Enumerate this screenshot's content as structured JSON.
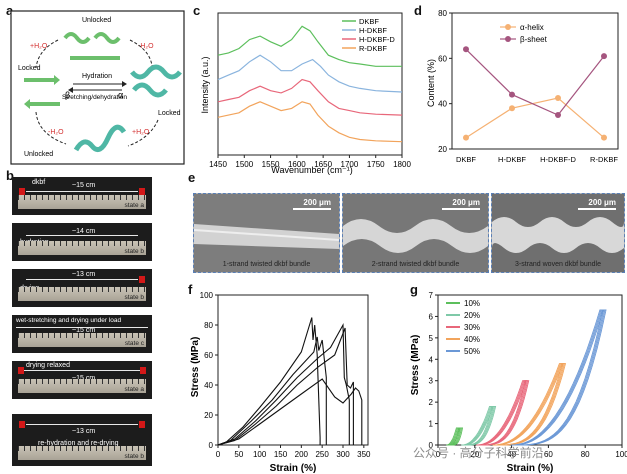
{
  "panels": [
    "a",
    "b",
    "c",
    "d",
    "e",
    "f",
    "g"
  ],
  "a": {
    "labels": {
      "unlocked_top": "Unlocked",
      "unlocked_bottom": "Unlocked",
      "locked_left": "Locked",
      "locked_right": "Locked",
      "h2o_left": "+H₂O",
      "h2o_right": "-H₂O",
      "h2o_bl": "-H₂O",
      "h2o_br": "+H₂O",
      "hydration": "Hydration",
      "stretching": "Stretching/dehydration",
      "beta": "β",
      "alpha": "α"
    }
  },
  "b": {
    "photos": [
      {
        "title": "dkbf",
        "length": "~15 cm",
        "state": "state a"
      },
      {
        "title": "hydration",
        "length": "~14 cm",
        "state": "state b"
      },
      {
        "title": "drying",
        "length": "~13 cm",
        "state": "state b"
      },
      {
        "title": "wet-stretching and drying under load",
        "length": "~15 cm",
        "state": "state c"
      },
      {
        "title": "drying relaxed",
        "length": "~15 cm",
        "state": "state a"
      },
      {
        "title": "re-hydration and re-drying",
        "length": "~13 cm",
        "state": "state b"
      }
    ]
  },
  "c": {
    "chart_data": {
      "type": "line",
      "xlabel": "Wavenumber (cm⁻¹)",
      "ylabel": "Intensity (a.u.)",
      "xlim": [
        1450,
        1800
      ],
      "xticks": [
        "1450",
        "1500",
        "1550",
        "1600",
        "1650",
        "1700",
        "1750",
        "1800"
      ],
      "legend_position": "top-right",
      "series": [
        {
          "name": "DKBF",
          "color": "#5cbf5c",
          "x": [
            1450,
            1470,
            1490,
            1510,
            1530,
            1550,
            1570,
            1590,
            1610,
            1625,
            1640,
            1660,
            1680,
            1700,
            1720,
            1750,
            1800
          ],
          "y": [
            2.95,
            3.0,
            3.1,
            3.3,
            3.38,
            3.25,
            3.15,
            3.3,
            3.6,
            3.5,
            3.25,
            2.95,
            2.85,
            2.78,
            2.75,
            2.7,
            2.7
          ]
        },
        {
          "name": "H-DKBF",
          "color": "#8ab4de",
          "x": [
            1450,
            1470,
            1490,
            1510,
            1530,
            1550,
            1570,
            1590,
            1610,
            1630,
            1645,
            1660,
            1680,
            1700,
            1720,
            1750,
            1800
          ],
          "y": [
            2.4,
            2.5,
            2.6,
            2.8,
            2.95,
            2.8,
            2.6,
            2.6,
            2.75,
            2.85,
            2.7,
            2.5,
            2.35,
            2.25,
            2.2,
            2.15,
            2.12
          ]
        },
        {
          "name": "H-DKBF-D",
          "color": "#e8677a",
          "x": [
            1450,
            1470,
            1490,
            1510,
            1530,
            1550,
            1570,
            1590,
            1610,
            1625,
            1640,
            1660,
            1680,
            1700,
            1720,
            1750,
            1800
          ],
          "y": [
            1.9,
            1.95,
            2.0,
            2.15,
            2.25,
            2.15,
            2.1,
            2.2,
            2.4,
            2.35,
            2.15,
            1.9,
            1.75,
            1.7,
            1.65,
            1.62,
            1.6
          ]
        },
        {
          "name": "R-DKBF",
          "color": "#f2a45c",
          "x": [
            1450,
            1470,
            1490,
            1510,
            1530,
            1550,
            1570,
            1590,
            1610,
            1625,
            1640,
            1660,
            1680,
            1700,
            1720,
            1750,
            1800
          ],
          "y": [
            1.55,
            1.6,
            1.65,
            1.8,
            1.9,
            1.8,
            1.7,
            1.75,
            1.9,
            1.85,
            1.6,
            1.35,
            1.2,
            1.1,
            1.05,
            1.02,
            1.0
          ]
        }
      ]
    }
  },
  "d": {
    "chart_data": {
      "type": "line",
      "categories": [
        "DKBF",
        "H-DKBF",
        "H-DKBF-D",
        "R-DKBF"
      ],
      "ylabel": "Content (%)",
      "ylim": [
        20,
        80
      ],
      "yticks": [
        "20",
        "40",
        "60",
        "80"
      ],
      "legend_position": "top-center",
      "series": [
        {
          "name": "α-helix",
          "color": "#f5b173",
          "values": [
            25,
            38,
            42.5,
            25
          ]
        },
        {
          "name": "β-sheet",
          "color": "#a5557f",
          "values": [
            64,
            44,
            35,
            61
          ]
        }
      ]
    }
  },
  "e": {
    "images": [
      {
        "caption": "1-strand twisted dkbf bundle",
        "scale": "200 μm"
      },
      {
        "caption": "2-strand twisted dkbf bundle",
        "scale": "200 μm"
      },
      {
        "caption": "3-strand woven dkbf bundle",
        "scale": "200 μm"
      }
    ]
  },
  "f": {
    "chart_data": {
      "type": "line",
      "xlabel": "Strain (%)",
      "ylabel": "Stress (MPa)",
      "xlim": [
        0,
        360
      ],
      "ylim": [
        0,
        100
      ],
      "xticks": [
        "0",
        "50",
        "100",
        "150",
        "200",
        "250",
        "300",
        "350"
      ],
      "yticks": [
        "0",
        "20",
        "40",
        "60",
        "80",
        "100"
      ],
      "series": [
        {
          "x": [
            0,
            20,
            60,
            100,
            150,
            200,
            225,
            228,
            232,
            238,
            245,
            245
          ],
          "y": [
            0,
            2,
            12,
            25,
            42,
            62,
            85,
            70,
            80,
            60,
            5,
            0
          ]
        },
        {
          "x": [
            0,
            30,
            80,
            130,
            180,
            230,
            238,
            242,
            250,
            260,
            260
          ],
          "y": [
            0,
            3,
            16,
            30,
            47,
            62,
            72,
            63,
            70,
            45,
            0
          ]
        },
        {
          "x": [
            0,
            40,
            90,
            140,
            190,
            240,
            270,
            300,
            303,
            308,
            315,
            315
          ],
          "y": [
            0,
            4,
            16,
            30,
            45,
            58,
            65,
            80,
            45,
            40,
            30,
            0
          ]
        },
        {
          "x": [
            0,
            40,
            90,
            140,
            190,
            240,
            280,
            305,
            310,
            318,
            325,
            325
          ],
          "y": [
            0,
            3,
            14,
            26,
            40,
            52,
            60,
            78,
            40,
            38,
            42,
            0
          ]
        },
        {
          "x": [
            0,
            50,
            100,
            150,
            200,
            250,
            280,
            300,
            320,
            330,
            338,
            345,
            345
          ],
          "y": [
            0,
            4,
            14,
            24,
            34,
            44,
            32,
            28,
            34,
            38,
            36,
            30,
            0
          ]
        }
      ]
    }
  },
  "g": {
    "chart_data": {
      "type": "line",
      "xlabel": "Strain (%)",
      "ylabel": "Stress (MPa)",
      "xlim": [
        0,
        100
      ],
      "ylim": [
        0,
        7
      ],
      "xticks": [
        "0",
        "20",
        "40",
        "60",
        "80",
        "100"
      ],
      "yticks": [
        "0",
        "1",
        "2",
        "3",
        "4",
        "5",
        "6",
        "7"
      ],
      "legend_position": "top-left",
      "series": [
        {
          "name": "10%",
          "color": "#5cbf5c",
          "max_strain": 10,
          "max_stress": 0.8
        },
        {
          "name": "20%",
          "color": "#7fc9a8",
          "max_strain": 28,
          "max_stress": 1.8
        },
        {
          "name": "30%",
          "color": "#e8677a",
          "max_strain": 46,
          "max_stress": 3.0
        },
        {
          "name": "40%",
          "color": "#f2a45c",
          "max_strain": 66,
          "max_stress": 3.8
        },
        {
          "name": "50%",
          "color": "#6b98d6",
          "max_strain": 88,
          "max_stress": 6.3
        }
      ]
    }
  },
  "watermark": "公众号 · 高分子科学前沿"
}
